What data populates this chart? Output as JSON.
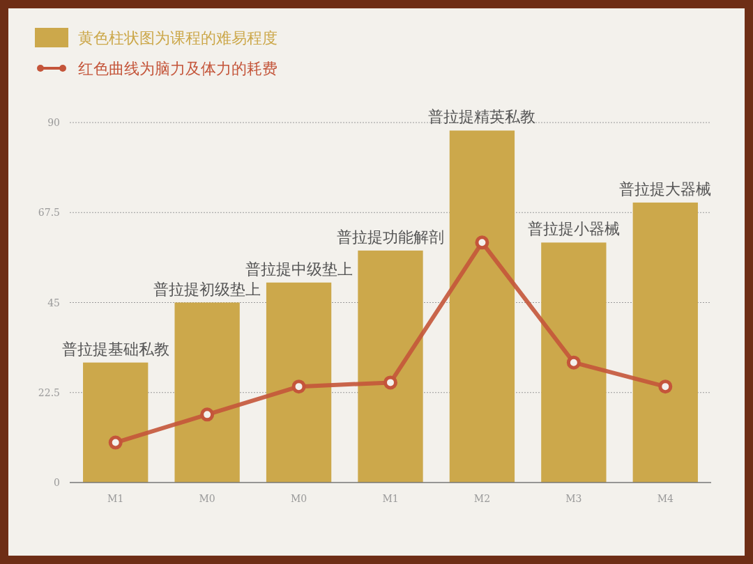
{
  "chart_data": {
    "type": "bar",
    "categories": [
      "M1",
      "M0",
      "M0",
      "M1",
      "M2",
      "M3",
      "M4"
    ],
    "series": [
      {
        "name": "黄色柱状图为课程的难易程度",
        "color": "#cca84b",
        "values": [
          30,
          45,
          50,
          58,
          88,
          60,
          70
        ],
        "value_labels": [
          "普拉提基础私教",
          "普拉提初级垫上",
          "普拉提中级垫上",
          "普拉提功能解剖",
          "普拉提精英私教",
          "普拉提小器械",
          "普拉提大器械"
        ]
      },
      {
        "name": "红色曲线为脑力及体力的耗费",
        "type": "line",
        "color": "#c4553a",
        "marker": "circle",
        "values": [
          10,
          17,
          24,
          25,
          60,
          30,
          24
        ]
      }
    ],
    "ylim": [
      0,
      90
    ],
    "yticks": [
      0,
      22.5,
      45,
      67.5,
      90
    ],
    "grid": "y",
    "legend": "top left"
  }
}
